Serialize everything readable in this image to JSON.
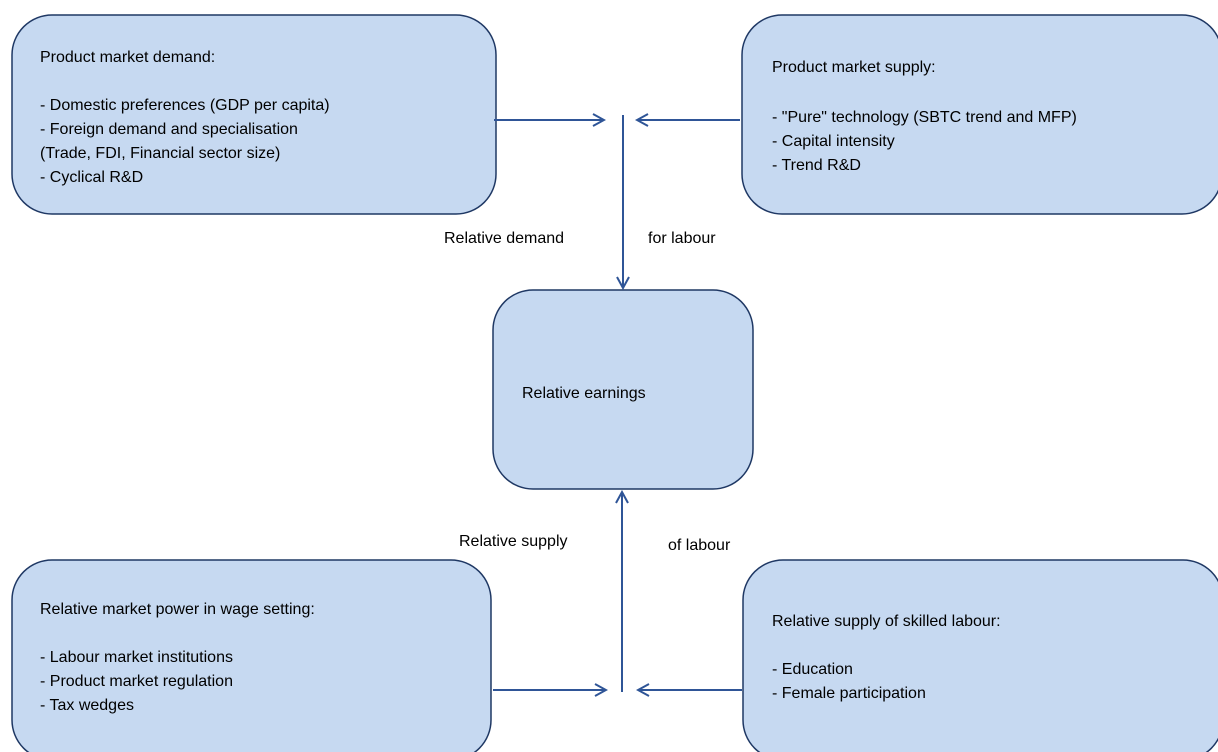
{
  "nodes": [
    {
      "label": "Product market demand:",
      "items": [
        "- Domestic preferences (GDP per capita)",
        "- Foreign demand and specialisation",
        "(Trade, FDI, Financial sector size)",
        "- Cyclical R&D"
      ]
    },
    {
      "label": "Product market supply:",
      "items": [
        "- \"Pure\" technology (SBTC trend and MFP)",
        "- Capital intensity",
        "- Trend R&D"
      ]
    },
    {
      "label": "Relative earnings",
      "items": []
    },
    {
      "label": "Relative market power in wage setting:",
      "items": [
        "- Labour market institutions",
        "- Product market regulation",
        "- Tax wedges"
      ]
    },
    {
      "label": "Relative supply of skilled labour:",
      "items": [
        "- Education",
        "- Female participation"
      ]
    }
  ],
  "edges": [
    {
      "label_left": "Relative demand",
      "label_right": "for labour"
    },
    {
      "label_left": "Relative supply",
      "label_right": "of labour"
    }
  ]
}
